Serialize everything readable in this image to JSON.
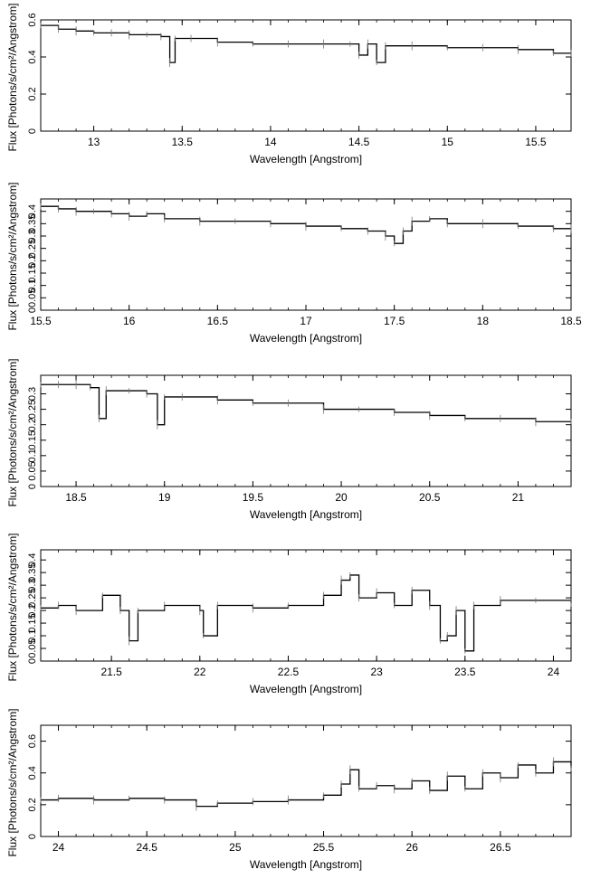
{
  "chart_data": [
    {
      "type": "line",
      "title": "",
      "xlabel": "Wavelength [Angstrom]",
      "ylabel": "Flux [Photons/s/cm²/Angstrom]",
      "xlim": [
        12.7,
        15.7
      ],
      "ylim": [
        0,
        0.6
      ],
      "xticks": [
        13,
        13.5,
        14,
        14.5,
        15,
        15.5
      ],
      "xtick_labels": [
        "13",
        "13.5",
        "14",
        "14.5",
        "15",
        "15.5"
      ],
      "yticks": [
        0,
        0.2,
        0.4,
        0.6
      ],
      "ytick_labels": [
        "0",
        "0.2",
        "0.4",
        "0.6"
      ],
      "grid": false,
      "series": [
        {
          "x": [
            12.7,
            12.8,
            12.9,
            13.0,
            13.1,
            13.2,
            13.3,
            13.38,
            13.43,
            13.46,
            13.55,
            13.7,
            13.9,
            14.1,
            14.3,
            14.45,
            14.5,
            14.55,
            14.6,
            14.65,
            14.8,
            15.0,
            15.2,
            15.4,
            15.6,
            15.7
          ],
          "y": [
            0.57,
            0.55,
            0.54,
            0.53,
            0.53,
            0.52,
            0.52,
            0.51,
            0.37,
            0.5,
            0.5,
            0.48,
            0.47,
            0.47,
            0.47,
            0.47,
            0.41,
            0.47,
            0.37,
            0.46,
            0.46,
            0.45,
            0.45,
            0.44,
            0.42,
            0.42
          ]
        }
      ]
    },
    {
      "type": "line",
      "title": "",
      "xlabel": "Wavelength [Angstrom]",
      "ylabel": "Flux [Photons/s/cm²/Angstrom]",
      "xlim": [
        15.5,
        18.5
      ],
      "ylim": [
        0,
        0.45
      ],
      "xticks": [
        15.5,
        16,
        16.5,
        17,
        17.5,
        18,
        18.5
      ],
      "xtick_labels": [
        "15.5",
        "16",
        "16.5",
        "17",
        "17.5",
        "18",
        "18.5"
      ],
      "yticks": [
        0,
        0.05,
        0.1,
        0.15,
        0.2,
        0.25,
        0.3,
        0.35,
        0.4
      ],
      "ytick_labels": [
        "0",
        "0.05",
        "0.1",
        "0.15",
        "0.2",
        "0.25",
        "0.3",
        "0.35",
        "0.4"
      ],
      "grid": false,
      "series": [
        {
          "x": [
            15.5,
            15.6,
            15.7,
            15.8,
            15.9,
            16.0,
            16.1,
            16.2,
            16.4,
            16.6,
            16.8,
            17.0,
            17.2,
            17.35,
            17.45,
            17.5,
            17.55,
            17.6,
            17.7,
            17.8,
            18.0,
            18.2,
            18.4,
            18.5
          ],
          "y": [
            0.42,
            0.41,
            0.4,
            0.4,
            0.39,
            0.38,
            0.39,
            0.37,
            0.36,
            0.36,
            0.35,
            0.34,
            0.33,
            0.32,
            0.3,
            0.27,
            0.32,
            0.36,
            0.37,
            0.35,
            0.35,
            0.34,
            0.33,
            0.33
          ]
        }
      ]
    },
    {
      "type": "line",
      "title": "",
      "xlabel": "Wavelength [Angstrom]",
      "ylabel": "Flux [Photons/s/cm²/Angstrom]",
      "xlim": [
        18.3,
        21.3
      ],
      "ylim": [
        0,
        0.36
      ],
      "xticks": [
        18.5,
        19,
        19.5,
        20,
        20.5,
        21
      ],
      "xtick_labels": [
        "18.5",
        "19",
        "19.5",
        "20",
        "20.5",
        "21"
      ],
      "yticks": [
        0,
        0.05,
        0.1,
        0.15,
        0.2,
        0.25,
        0.3
      ],
      "ytick_labels": [
        "0",
        "0.05",
        "0.1",
        "0.15",
        "0.2",
        "0.25",
        "0.3"
      ],
      "grid": false,
      "series": [
        {
          "x": [
            18.3,
            18.4,
            18.5,
            18.58,
            18.63,
            18.67,
            18.8,
            18.9,
            18.96,
            19.0,
            19.1,
            19.3,
            19.5,
            19.7,
            19.9,
            20.1,
            20.3,
            20.5,
            20.7,
            20.9,
            21.1,
            21.3
          ],
          "y": [
            0.33,
            0.33,
            0.33,
            0.32,
            0.22,
            0.31,
            0.31,
            0.3,
            0.2,
            0.29,
            0.29,
            0.28,
            0.27,
            0.27,
            0.25,
            0.25,
            0.24,
            0.23,
            0.22,
            0.22,
            0.21,
            0.21
          ]
        }
      ]
    },
    {
      "type": "line",
      "title": "",
      "xlabel": "Wavelength [Angstrom]",
      "ylabel": "Flux [Photons/s/cm²/Angstrom]",
      "xlim": [
        21.1,
        24.1
      ],
      "ylim": [
        0,
        0.44
      ],
      "xticks": [
        21.5,
        22,
        22.5,
        23,
        23.5,
        24
      ],
      "xtick_labels": [
        "21.5",
        "22",
        "22.5",
        "23",
        "23.5",
        "24"
      ],
      "yticks": [
        0,
        0.05,
        0.1,
        0.15,
        0.2,
        0.25,
        0.3,
        0.35,
        0.4
      ],
      "ytick_labels": [
        "0",
        "0.05",
        "0.1",
        "0.15",
        "0.2",
        "0.25",
        "0.3",
        "0.35",
        "0.4"
      ],
      "grid": false,
      "series": [
        {
          "x": [
            21.1,
            21.2,
            21.3,
            21.45,
            21.55,
            21.6,
            21.65,
            21.8,
            22.0,
            22.02,
            22.1,
            22.3,
            22.5,
            22.7,
            22.8,
            22.85,
            22.9,
            23.0,
            23.1,
            23.2,
            23.3,
            23.36,
            23.4,
            23.45,
            23.5,
            23.55,
            23.7,
            23.9,
            24.1
          ],
          "y": [
            0.21,
            0.22,
            0.2,
            0.26,
            0.2,
            0.08,
            0.2,
            0.22,
            0.2,
            0.1,
            0.22,
            0.21,
            0.22,
            0.26,
            0.32,
            0.34,
            0.25,
            0.27,
            0.22,
            0.28,
            0.22,
            0.08,
            0.1,
            0.2,
            0.04,
            0.22,
            0.24,
            0.24,
            0.23
          ]
        }
      ]
    },
    {
      "type": "line",
      "title": "",
      "xlabel": "Wavelength [Angstrom]",
      "ylabel": "Flux [Photons/s/cm²/Angstrom]",
      "xlim": [
        23.9,
        26.9
      ],
      "ylim": [
        0,
        0.7
      ],
      "xticks": [
        24,
        24.5,
        25,
        25.5,
        26,
        26.5
      ],
      "xtick_labels": [
        "24",
        "24.5",
        "25",
        "25.5",
        "26",
        "26.5"
      ],
      "yticks": [
        0,
        0.2,
        0.4,
        0.6
      ],
      "ytick_labels": [
        "0",
        "0.2",
        "0.4",
        "0.6"
      ],
      "grid": false,
      "series": [
        {
          "x": [
            23.9,
            24.0,
            24.2,
            24.4,
            24.6,
            24.78,
            24.9,
            25.1,
            25.3,
            25.5,
            25.6,
            25.65,
            25.7,
            25.8,
            25.9,
            26.0,
            26.1,
            26.2,
            26.3,
            26.4,
            26.5,
            26.6,
            26.7,
            26.8,
            26.9
          ],
          "y": [
            0.23,
            0.24,
            0.23,
            0.24,
            0.23,
            0.19,
            0.21,
            0.22,
            0.23,
            0.26,
            0.33,
            0.42,
            0.3,
            0.32,
            0.3,
            0.35,
            0.29,
            0.38,
            0.3,
            0.4,
            0.37,
            0.45,
            0.4,
            0.47,
            0.43
          ]
        }
      ]
    }
  ]
}
